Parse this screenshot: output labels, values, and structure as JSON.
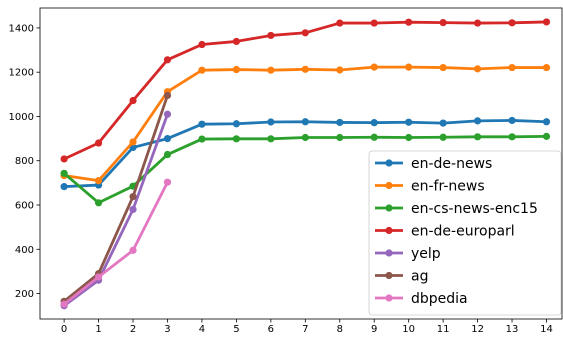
{
  "chart_data": {
    "type": "line",
    "title": "",
    "xlabel": "",
    "ylabel": "",
    "x": [
      0,
      1,
      2,
      3,
      4,
      5,
      6,
      7,
      8,
      9,
      10,
      11,
      12,
      13,
      14
    ],
    "xlim": [
      -0.7,
      14.45
    ],
    "ylim": [
      85,
      1490
    ],
    "yticks": [
      200,
      400,
      600,
      800,
      1000,
      1200,
      1400
    ],
    "grid": false,
    "legend_position": "lower-right",
    "series": [
      {
        "name": "en-de-news",
        "color": "#1f77b4",
        "x": [
          0,
          1,
          2,
          3,
          4,
          5,
          6,
          7,
          8,
          9,
          10,
          11,
          12,
          13,
          14
        ],
        "values": [
          683,
          690,
          860,
          900,
          965,
          967,
          975,
          976,
          973,
          972,
          974,
          970,
          980,
          982,
          976
        ]
      },
      {
        "name": "en-fr-news",
        "color": "#ff7f0e",
        "x": [
          0,
          1,
          2,
          3,
          4,
          5,
          6,
          7,
          8,
          9,
          10,
          11,
          12,
          13,
          14
        ],
        "values": [
          733,
          710,
          885,
          1112,
          1209,
          1212,
          1209,
          1213,
          1210,
          1223,
          1223,
          1221,
          1215,
          1221,
          1221
        ]
      },
      {
        "name": "en-cs-news-enc15",
        "color": "#2ca02c",
        "x": [
          0,
          1,
          2,
          3,
          4,
          5,
          6,
          7,
          8,
          9,
          10,
          11,
          12,
          13,
          14
        ],
        "values": [
          743,
          610,
          685,
          828,
          898,
          899,
          899,
          905,
          905,
          906,
          905,
          906,
          908,
          908,
          910
        ]
      },
      {
        "name": "en-de-europarl",
        "color": "#d62728",
        "x": [
          0,
          1,
          2,
          3,
          4,
          5,
          6,
          7,
          8,
          9,
          10,
          11,
          12,
          13,
          14
        ],
        "values": [
          808,
          880,
          1072,
          1256,
          1325,
          1339,
          1366,
          1378,
          1422,
          1422,
          1426,
          1424,
          1422,
          1423,
          1427
        ]
      },
      {
        "name": "yelp",
        "color": "#9467bd",
        "x": [
          0,
          1,
          2,
          3
        ],
        "values": [
          145,
          260,
          580,
          1010
        ]
      },
      {
        "name": "ag",
        "color": "#8c564b",
        "x": [
          0,
          1,
          2,
          3
        ],
        "values": [
          165,
          290,
          638,
          1095
        ]
      },
      {
        "name": "dbpedia",
        "color": "#e377c2",
        "x": [
          0,
          1,
          2,
          3
        ],
        "values": [
          152,
          275,
          395,
          703
        ]
      }
    ]
  }
}
